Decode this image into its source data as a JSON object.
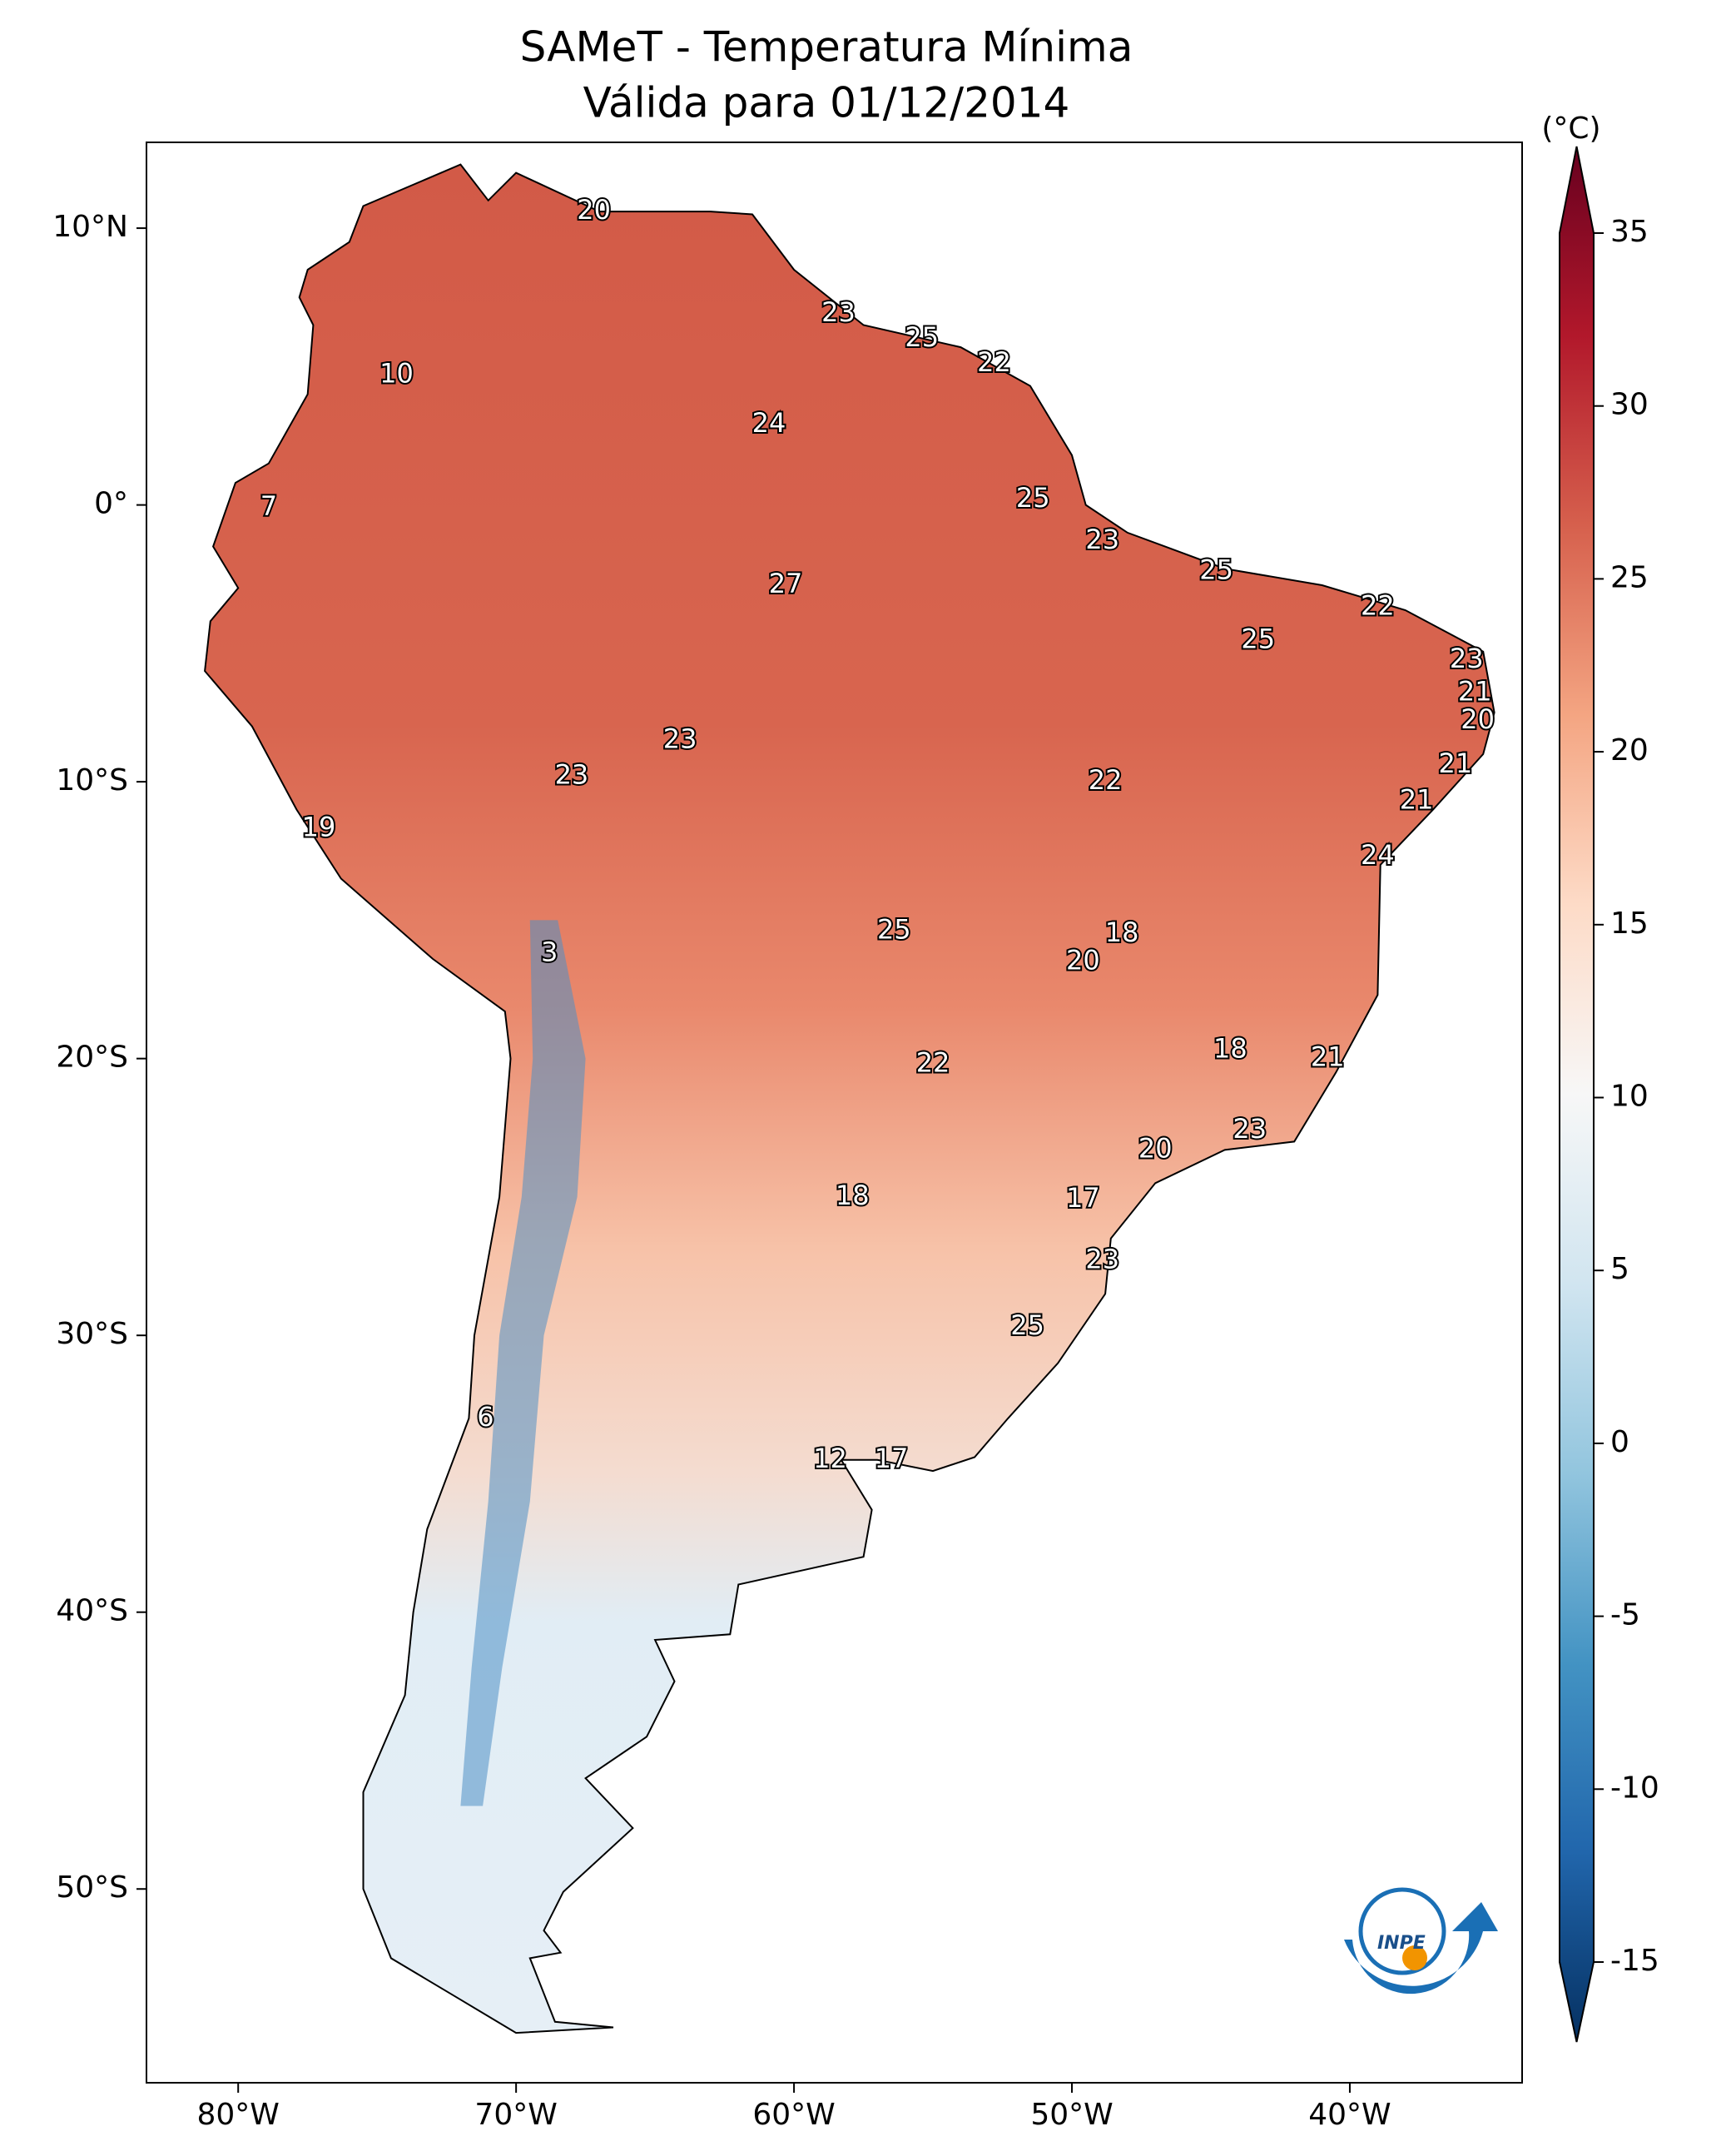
{
  "chart_data": {
    "type": "map",
    "title": "SAMeT - Temperatura Mínima",
    "subtitle": "Válida para 01/12/2014",
    "unit": "(°C)",
    "logo_text": "INPE",
    "colormap": "RdBu_r",
    "xlim": [
      -83.3,
      -33.8
    ],
    "ylim": [
      -57,
      13.1
    ],
    "xticks": [
      {
        "value": -80,
        "label": "80°W"
      },
      {
        "value": -70,
        "label": "70°W"
      },
      {
        "value": -60,
        "label": "60°W"
      },
      {
        "value": -50,
        "label": "50°W"
      },
      {
        "value": -40,
        "label": "40°W"
      }
    ],
    "yticks": [
      {
        "value": 10,
        "label": "10°N"
      },
      {
        "value": 0,
        "label": "0°"
      },
      {
        "value": -10,
        "label": "10°S"
      },
      {
        "value": -20,
        "label": "20°S"
      },
      {
        "value": -30,
        "label": "30°S"
      },
      {
        "value": -40,
        "label": "40°S"
      },
      {
        "value": -50,
        "label": "50°S"
      }
    ],
    "clim": [
      -15,
      35
    ],
    "cticks": [
      -15,
      -10,
      -5,
      0,
      5,
      10,
      15,
      20,
      25,
      30,
      35
    ],
    "labels": [
      {
        "lon": -67.2,
        "lat": 10.6,
        "value": 20
      },
      {
        "lon": -74.3,
        "lat": 4.7,
        "value": 10
      },
      {
        "lon": -78.9,
        "lat": -0.1,
        "value": 7
      },
      {
        "lon": -58.4,
        "lat": 6.9,
        "value": 23
      },
      {
        "lon": -55.4,
        "lat": 6.0,
        "value": 25
      },
      {
        "lon": -52.8,
        "lat": 5.1,
        "value": 22
      },
      {
        "lon": -60.9,
        "lat": 2.9,
        "value": 24
      },
      {
        "lon": -51.4,
        "lat": 0.2,
        "value": 25
      },
      {
        "lon": -48.9,
        "lat": -1.3,
        "value": 23
      },
      {
        "lon": -44.8,
        "lat": -2.4,
        "value": 25
      },
      {
        "lon": -39.0,
        "lat": -3.7,
        "value": 22
      },
      {
        "lon": -60.3,
        "lat": -2.9,
        "value": 27
      },
      {
        "lon": -43.3,
        "lat": -4.9,
        "value": 25
      },
      {
        "lon": -35.8,
        "lat": -5.6,
        "value": 23
      },
      {
        "lon": -35.5,
        "lat": -6.8,
        "value": 21
      },
      {
        "lon": -35.4,
        "lat": -7.8,
        "value": 20
      },
      {
        "lon": -36.2,
        "lat": -9.4,
        "value": 21
      },
      {
        "lon": -37.6,
        "lat": -10.7,
        "value": 21
      },
      {
        "lon": -39.0,
        "lat": -12.7,
        "value": 24
      },
      {
        "lon": -64.1,
        "lat": -8.5,
        "value": 23
      },
      {
        "lon": -68.0,
        "lat": -9.8,
        "value": 23
      },
      {
        "lon": -48.8,
        "lat": -10.0,
        "value": 22
      },
      {
        "lon": -77.1,
        "lat": -11.7,
        "value": 19
      },
      {
        "lon": -68.8,
        "lat": -16.2,
        "value": 3
      },
      {
        "lon": -56.4,
        "lat": -15.4,
        "value": 25
      },
      {
        "lon": -48.2,
        "lat": -15.5,
        "value": 18
      },
      {
        "lon": -49.6,
        "lat": -16.5,
        "value": 20
      },
      {
        "lon": -44.3,
        "lat": -19.7,
        "value": 18
      },
      {
        "lon": -40.8,
        "lat": -20.0,
        "value": 21
      },
      {
        "lon": -55.0,
        "lat": -20.2,
        "value": 22
      },
      {
        "lon": -43.6,
        "lat": -22.6,
        "value": 23
      },
      {
        "lon": -47.0,
        "lat": -23.3,
        "value": 20
      },
      {
        "lon": -57.9,
        "lat": -25.0,
        "value": 18
      },
      {
        "lon": -49.6,
        "lat": -25.1,
        "value": 17
      },
      {
        "lon": -48.9,
        "lat": -27.3,
        "value": 23
      },
      {
        "lon": -51.6,
        "lat": -29.7,
        "value": 25
      },
      {
        "lon": -71.1,
        "lat": -33.0,
        "value": 6
      },
      {
        "lon": -58.7,
        "lat": -34.5,
        "value": 12
      },
      {
        "lon": -56.5,
        "lat": -34.5,
        "value": 17
      }
    ]
  }
}
